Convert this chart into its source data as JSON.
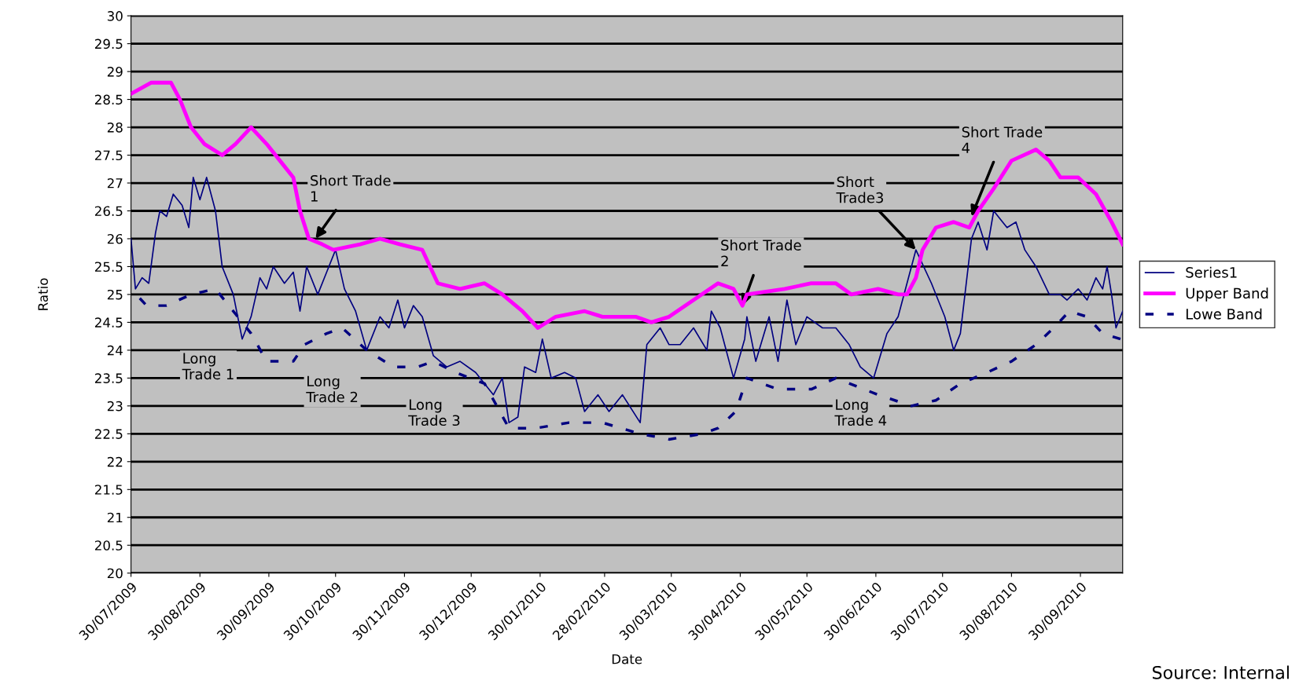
{
  "chart_data": {
    "type": "line",
    "xlabel": "Date",
    "ylabel": "Ratio",
    "ylim": [
      20,
      30
    ],
    "yticks": [
      20,
      20.5,
      21,
      21.5,
      22,
      22.5,
      23,
      23.5,
      24,
      24.5,
      25,
      25.5,
      26,
      26.5,
      27,
      27.5,
      28,
      28.5,
      29,
      29.5,
      30
    ],
    "xlim": [
      "2009-07-30",
      "2010-10-19"
    ],
    "xticks": [
      {
        "value": "2009-07-30",
        "label": "30/07/2009"
      },
      {
        "value": "2009-08-30",
        "label": "30/08/2009"
      },
      {
        "value": "2009-09-30",
        "label": "30/09/2009"
      },
      {
        "value": "2009-10-30",
        "label": "30/10/2009"
      },
      {
        "value": "2009-11-30",
        "label": "30/11/2009"
      },
      {
        "value": "2009-12-30",
        "label": "30/12/2009"
      },
      {
        "value": "2010-01-30",
        "label": "30/01/2010"
      },
      {
        "value": "2010-02-28",
        "label": "28/02/2010"
      },
      {
        "value": "2010-03-30",
        "label": "30/03/2010"
      },
      {
        "value": "2010-04-30",
        "label": "30/04/2010"
      },
      {
        "value": "2010-05-30",
        "label": "30/05/2010"
      },
      {
        "value": "2010-06-30",
        "label": "30/06/2010"
      },
      {
        "value": "2010-07-30",
        "label": "30/07/2010"
      },
      {
        "value": "2010-08-30",
        "label": "30/08/2010"
      },
      {
        "value": "2010-09-30",
        "label": "30/09/2010"
      }
    ],
    "grid": "y",
    "legend": "right",
    "marker": "none",
    "series": [
      {
        "name": "Series1",
        "color": "#000080",
        "line_style": "solid",
        "x": [
          "2009-07-30",
          "2009-08-01",
          "2009-08-04",
          "2009-08-07",
          "2009-08-10",
          "2009-08-12",
          "2009-08-15",
          "2009-08-18",
          "2009-08-22",
          "2009-08-25",
          "2009-08-27",
          "2009-08-30",
          "2009-09-02",
          "2009-09-06",
          "2009-09-09",
          "2009-09-14",
          "2009-09-18",
          "2009-09-22",
          "2009-09-26",
          "2009-09-29",
          "2009-10-02",
          "2009-10-07",
          "2009-10-11",
          "2009-10-14",
          "2009-10-17",
          "2009-10-22",
          "2009-10-26",
          "2009-10-30",
          "2009-11-03",
          "2009-11-08",
          "2009-11-13",
          "2009-11-19",
          "2009-11-23",
          "2009-11-27",
          "2009-11-30",
          "2009-12-04",
          "2009-12-08",
          "2009-12-13",
          "2009-12-19",
          "2009-12-25",
          "2010-01-01",
          "2010-01-09",
          "2010-01-13",
          "2010-01-16",
          "2010-01-20",
          "2010-01-23",
          "2010-01-28",
          "2010-01-31",
          "2010-02-04",
          "2010-02-10",
          "2010-02-15",
          "2010-02-19",
          "2010-02-25",
          "2010-03-02",
          "2010-03-08",
          "2010-03-16",
          "2010-03-19",
          "2010-03-25",
          "2010-03-29",
          "2010-04-03",
          "2010-04-09",
          "2010-04-15",
          "2010-04-17",
          "2010-04-21",
          "2010-04-27",
          "2010-05-02",
          "2010-05-03",
          "2010-05-07",
          "2010-05-13",
          "2010-05-17",
          "2010-05-21",
          "2010-05-25",
          "2010-05-30",
          "2010-06-06",
          "2010-06-12",
          "2010-06-18",
          "2010-06-23",
          "2010-06-29",
          "2010-07-05",
          "2010-07-10",
          "2010-07-14",
          "2010-07-18",
          "2010-07-25",
          "2010-07-31",
          "2010-08-04",
          "2010-08-07",
          "2010-08-12",
          "2010-08-15",
          "2010-08-19",
          "2010-08-22",
          "2010-08-28",
          "2010-09-01",
          "2010-09-05",
          "2010-09-10",
          "2010-09-16",
          "2010-09-21",
          "2010-09-24",
          "2010-09-29",
          "2010-10-03",
          "2010-10-07",
          "2010-10-10",
          "2010-10-12",
          "2010-10-14",
          "2010-10-16",
          "2010-10-19"
        ],
        "values": [
          26.0,
          25.1,
          25.3,
          25.2,
          26.1,
          26.5,
          26.4,
          26.8,
          26.6,
          26.2,
          27.1,
          26.7,
          27.1,
          26.5,
          25.5,
          25.0,
          24.2,
          24.6,
          25.3,
          25.1,
          25.5,
          25.2,
          25.4,
          24.7,
          25.5,
          25.0,
          25.4,
          25.8,
          25.1,
          24.7,
          24.0,
          24.6,
          24.4,
          24.9,
          24.4,
          24.8,
          24.6,
          23.9,
          23.7,
          23.8,
          23.6,
          23.2,
          23.5,
          22.7,
          22.8,
          23.7,
          23.6,
          24.2,
          23.5,
          23.6,
          23.5,
          22.9,
          23.2,
          22.9,
          23.2,
          22.7,
          24.1,
          24.4,
          24.1,
          24.1,
          24.4,
          24.0,
          24.7,
          24.4,
          23.5,
          24.2,
          24.6,
          23.8,
          24.6,
          23.8,
          24.9,
          24.1,
          24.6,
          24.4,
          24.4,
          24.1,
          23.7,
          23.5,
          24.3,
          24.6,
          25.2,
          25.8,
          25.2,
          24.6,
          24.0,
          24.3,
          26.0,
          26.3,
          25.8,
          26.5,
          26.2,
          26.3,
          25.8,
          25.5,
          25.0,
          25.0,
          24.9,
          25.1,
          24.9,
          25.3,
          25.1,
          25.5,
          25.0,
          24.4,
          24.7
        ]
      },
      {
        "name": "Upper Band",
        "color": "#ff00ff",
        "line_style": "solid",
        "x": [
          "2009-07-30",
          "2009-08-08",
          "2009-08-17",
          "2009-08-21",
          "2009-08-26",
          "2009-09-01",
          "2009-09-09",
          "2009-09-15",
          "2009-09-22",
          "2009-09-29",
          "2009-10-05",
          "2009-10-11",
          "2009-10-14",
          "2009-10-18",
          "2009-10-24",
          "2009-10-29",
          "2009-11-10",
          "2009-11-19",
          "2009-11-28",
          "2009-12-08",
          "2009-12-15",
          "2009-12-25",
          "2010-01-05",
          "2010-01-13",
          "2010-01-22",
          "2010-01-29",
          "2010-02-06",
          "2010-02-19",
          "2010-02-27",
          "2010-03-14",
          "2010-03-21",
          "2010-03-29",
          "2010-04-09",
          "2010-04-20",
          "2010-04-27",
          "2010-05-01",
          "2010-05-03",
          "2010-05-20",
          "2010-06-01",
          "2010-06-12",
          "2010-06-19",
          "2010-07-01",
          "2010-07-10",
          "2010-07-14",
          "2010-07-18",
          "2010-07-21",
          "2010-07-27",
          "2010-08-04",
          "2010-08-11",
          "2010-08-15",
          "2010-08-22",
          "2010-08-30",
          "2010-09-10",
          "2010-09-16",
          "2010-09-21",
          "2010-09-29",
          "2010-10-07",
          "2010-10-14",
          "2010-10-19"
        ],
        "values": [
          28.6,
          28.8,
          28.8,
          28.5,
          28.0,
          27.7,
          27.5,
          27.7,
          28.0,
          27.7,
          27.4,
          27.1,
          26.5,
          26.0,
          25.9,
          25.8,
          25.9,
          26.0,
          25.9,
          25.8,
          25.2,
          25.1,
          25.2,
          25.0,
          24.7,
          24.4,
          24.6,
          24.7,
          24.6,
          24.6,
          24.5,
          24.6,
          24.9,
          25.2,
          25.1,
          24.8,
          25.0,
          25.1,
          25.2,
          25.2,
          25.0,
          25.1,
          25.0,
          25.0,
          25.3,
          25.8,
          26.2,
          26.3,
          26.2,
          26.5,
          26.9,
          27.4,
          27.6,
          27.4,
          27.1,
          27.1,
          26.8,
          26.3,
          25.9
        ]
      },
      {
        "name": "Lowe Band",
        "color": "#000080",
        "line_style": "dashed",
        "x": [
          "2009-07-30",
          "2009-08-06",
          "2009-08-15",
          "2009-08-26",
          "2009-09-06",
          "2009-09-12",
          "2009-09-22",
          "2009-09-29",
          "2009-10-11",
          "2009-10-16",
          "2009-10-26",
          "2009-11-02",
          "2009-11-13",
          "2009-11-25",
          "2009-12-06",
          "2009-12-13",
          "2009-12-23",
          "2010-01-05",
          "2010-01-16",
          "2010-01-28",
          "2010-02-12",
          "2010-02-27",
          "2010-03-16",
          "2010-03-29",
          "2010-04-13",
          "2010-04-20",
          "2010-04-28",
          "2010-05-03",
          "2010-05-17",
          "2010-06-01",
          "2010-06-12",
          "2010-07-01",
          "2010-07-16",
          "2010-07-27",
          "2010-08-07",
          "2010-08-19",
          "2010-08-30",
          "2010-09-10",
          "2010-09-18",
          "2010-09-25",
          "2010-10-03",
          "2010-10-10",
          "2010-10-18"
        ],
        "values": [
          25.1,
          24.8,
          24.8,
          25.0,
          25.1,
          24.8,
          24.3,
          23.8,
          23.8,
          24.1,
          24.3,
          24.4,
          24.0,
          23.7,
          23.7,
          23.8,
          23.6,
          23.4,
          22.6,
          22.6,
          22.7,
          22.7,
          22.5,
          22.4,
          22.5,
          22.6,
          22.9,
          23.5,
          23.3,
          23.3,
          23.5,
          23.2,
          23.0,
          23.1,
          23.4,
          23.6,
          23.8,
          24.1,
          24.4,
          24.7,
          24.6,
          24.3,
          24.2
        ]
      }
    ],
    "annotations": [
      {
        "text": "Short Trade\n1",
        "x": "2009-10-21",
        "y": 26.0
      },
      {
        "text": "Short Trade\n2",
        "x": "2010-05-01",
        "y": 24.8
      },
      {
        "text": "Short\nTrade3",
        "x": "2010-07-18",
        "y": 25.8
      },
      {
        "text": "Short Trade\n4",
        "x": "2010-08-12",
        "y": 26.4
      },
      "Long\nTrade 1",
      "Long\nTrade 2",
      "Long\nTrade 3",
      "Long\nTrade 4",
      "Source: Internal"
    ]
  }
}
